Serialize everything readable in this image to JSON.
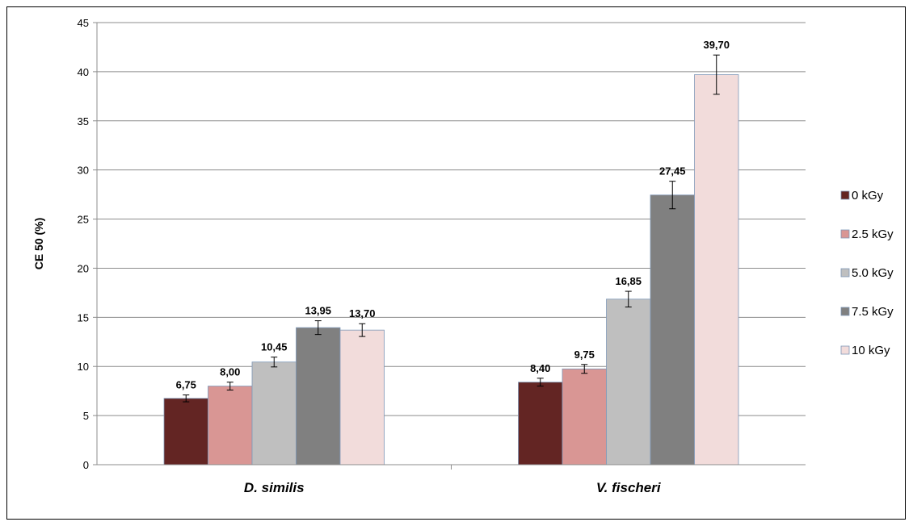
{
  "chart_data": {
    "type": "bar",
    "ylabel": "CE  50 (%)",
    "ylim": [
      0,
      45
    ],
    "yticks": [
      0,
      5,
      10,
      15,
      20,
      25,
      30,
      35,
      40,
      45
    ],
    "grid": true,
    "legend_position": "right",
    "categories": [
      "D. similis",
      "V. fischeri"
    ],
    "series": [
      {
        "name": "0 kGy",
        "color": "#632523",
        "values": [
          6.75,
          8.4
        ],
        "labels": [
          "6,75",
          "8,40"
        ],
        "errors": [
          0.35,
          0.4
        ]
      },
      {
        "name": "2.5 kGy",
        "color": "#d99694",
        "values": [
          8.0,
          9.75
        ],
        "labels": [
          "8,00",
          "9,75"
        ],
        "errors": [
          0.4,
          0.45
        ]
      },
      {
        "name": "5.0 kGy",
        "color": "#bfbfbf",
        "values": [
          10.45,
          16.85
        ],
        "labels": [
          "10,45",
          "16,85"
        ],
        "errors": [
          0.5,
          0.8
        ]
      },
      {
        "name": "7.5 kGy",
        "color": "#808080",
        "values": [
          13.95,
          27.45
        ],
        "labels": [
          "13,95",
          "27,45"
        ],
        "errors": [
          0.7,
          1.4
        ]
      },
      {
        "name": "10 kGy",
        "color": "#f2dcdb",
        "values": [
          13.7,
          39.7
        ],
        "labels": [
          "13,70",
          "39,70"
        ],
        "errors": [
          0.65,
          2.0
        ]
      }
    ]
  }
}
